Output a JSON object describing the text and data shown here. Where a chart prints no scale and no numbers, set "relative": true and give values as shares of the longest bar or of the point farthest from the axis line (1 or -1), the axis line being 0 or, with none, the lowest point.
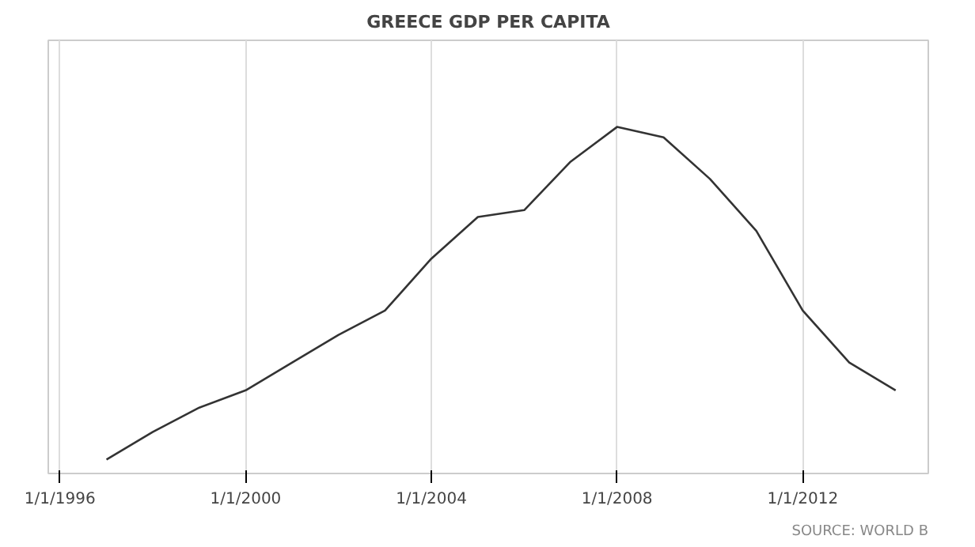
{
  "chart_data": {
    "type": "line",
    "title": "GREECE GDP PER CAPITA",
    "relative": true,
    "x": [
      "1997-01-01",
      "1998-01-01",
      "1999-01-01",
      "2000-01-01",
      "2001-01-01",
      "2002-01-01",
      "2003-01-01",
      "2004-01-01",
      "2005-01-01",
      "2006-01-01",
      "2007-01-01",
      "2008-01-01",
      "2009-01-01",
      "2010-01-01",
      "2011-01-01",
      "2012-01-01",
      "2013-01-01",
      "2014-01-01"
    ],
    "series": [
      {
        "color": "#333333",
        "values": [
          0.04,
          0.12,
          0.19,
          0.24,
          0.32,
          0.4,
          0.47,
          0.62,
          0.74,
          0.76,
          0.9,
          1,
          0.97,
          0.85,
          0.7,
          0.47,
          0.32,
          0.24
        ]
      }
    ],
    "xlim": [
      "1995-10-01",
      "2014-09-15"
    ],
    "xticks": [
      {
        "value": "1996-01-01",
        "label": "1/1/1996"
      },
      {
        "value": "2000-01-01",
        "label": "1/1/2000"
      },
      {
        "value": "2004-01-01",
        "label": "1/1/2004"
      },
      {
        "value": "2008-01-01",
        "label": "1/1/2008"
      },
      {
        "value": "2012-01-01",
        "label": "1/1/2012"
      }
    ],
    "grid": "x",
    "marker": "none",
    "line_style": "solid",
    "annotations": [
      "SOURCE: WORLD B"
    ]
  }
}
